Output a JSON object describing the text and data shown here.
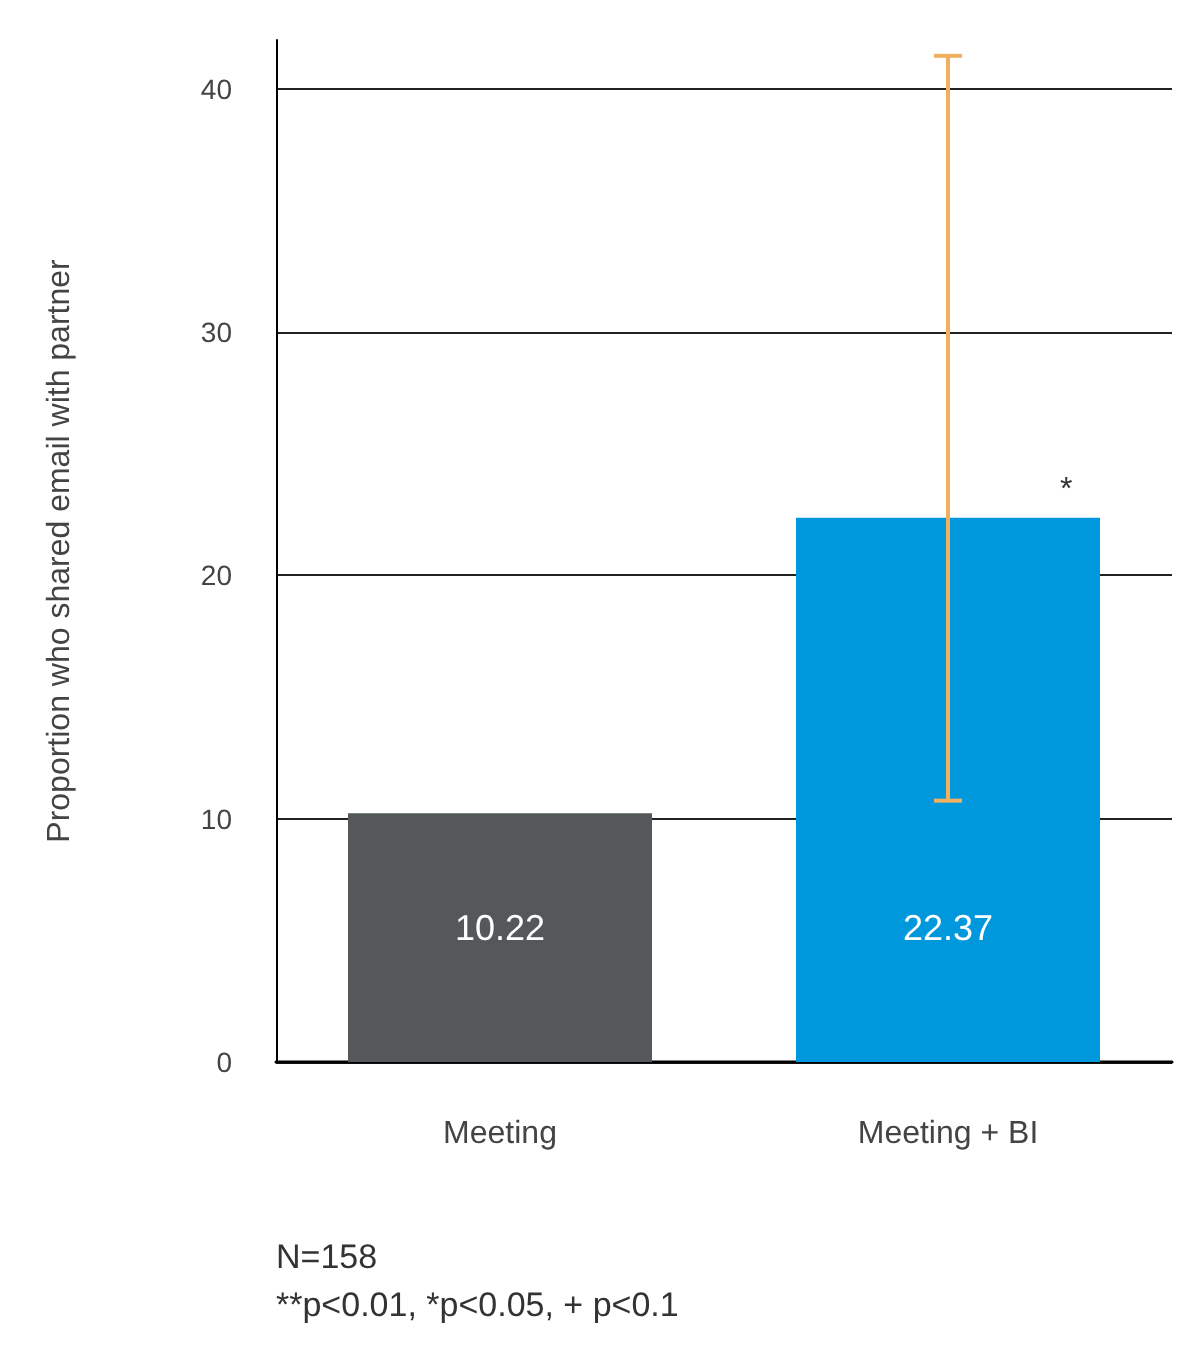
{
  "chart_data": {
    "type": "bar",
    "ylabel": "Proportion who shared email with partner",
    "categories": [
      "Meeting",
      "Meeting + BI"
    ],
    "values": [
      10.22,
      22.37
    ],
    "colors": [
      "#54585a",
      "#0098dc"
    ],
    "errors": [
      null,
      [
        10.74,
        41.35
      ]
    ],
    "data_labels": true,
    "ylim": [
      0,
      42
    ],
    "yticks": [
      0,
      10,
      20,
      30,
      40
    ],
    "grid": "y",
    "annotations": [
      "*",
      "N=158",
      "**p<0.01, *p<0.05, + p<0.1"
    ]
  }
}
